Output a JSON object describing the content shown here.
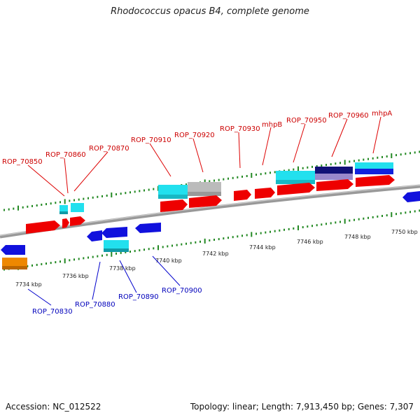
{
  "title": "Rhodococcus opacus B4, complete genome",
  "footer": {
    "accession": "Accession: NC_012522",
    "summary": "Topology: linear; Length: 7,913,450 bp; Genes: 7,307"
  },
  "colors": {
    "forward_label": "#cc0000",
    "reverse_label": "#0000bb",
    "forward_gene": "#ee0000",
    "reverse_gene": "#0000dd",
    "cyan_feature": "#22e0ee",
    "gray_feature": "#bbbbbb",
    "navy_feature": "#111177",
    "orange_feature": "#ee8800",
    "tick": "#228822",
    "backbone": "#888888"
  },
  "genome": {
    "scale_labels": [
      "7734 kbp",
      "7736 kbp",
      "7738 kbp",
      "7740 kbp",
      "7742 kbp",
      "7744 kbp",
      "7746 kbp",
      "7748 kbp",
      "7750 kbp"
    ],
    "forward_labels": [
      "ROP_70850",
      "ROP_70860",
      "ROP_70870",
      "ROP_70910",
      "ROP_70920",
      "ROP_70930",
      "mhpB",
      "ROP_70950",
      "ROP_70960",
      "mhpA"
    ],
    "reverse_labels": [
      "ROP_70830",
      "ROP_70880",
      "ROP_70890",
      "ROP_70900"
    ]
  }
}
